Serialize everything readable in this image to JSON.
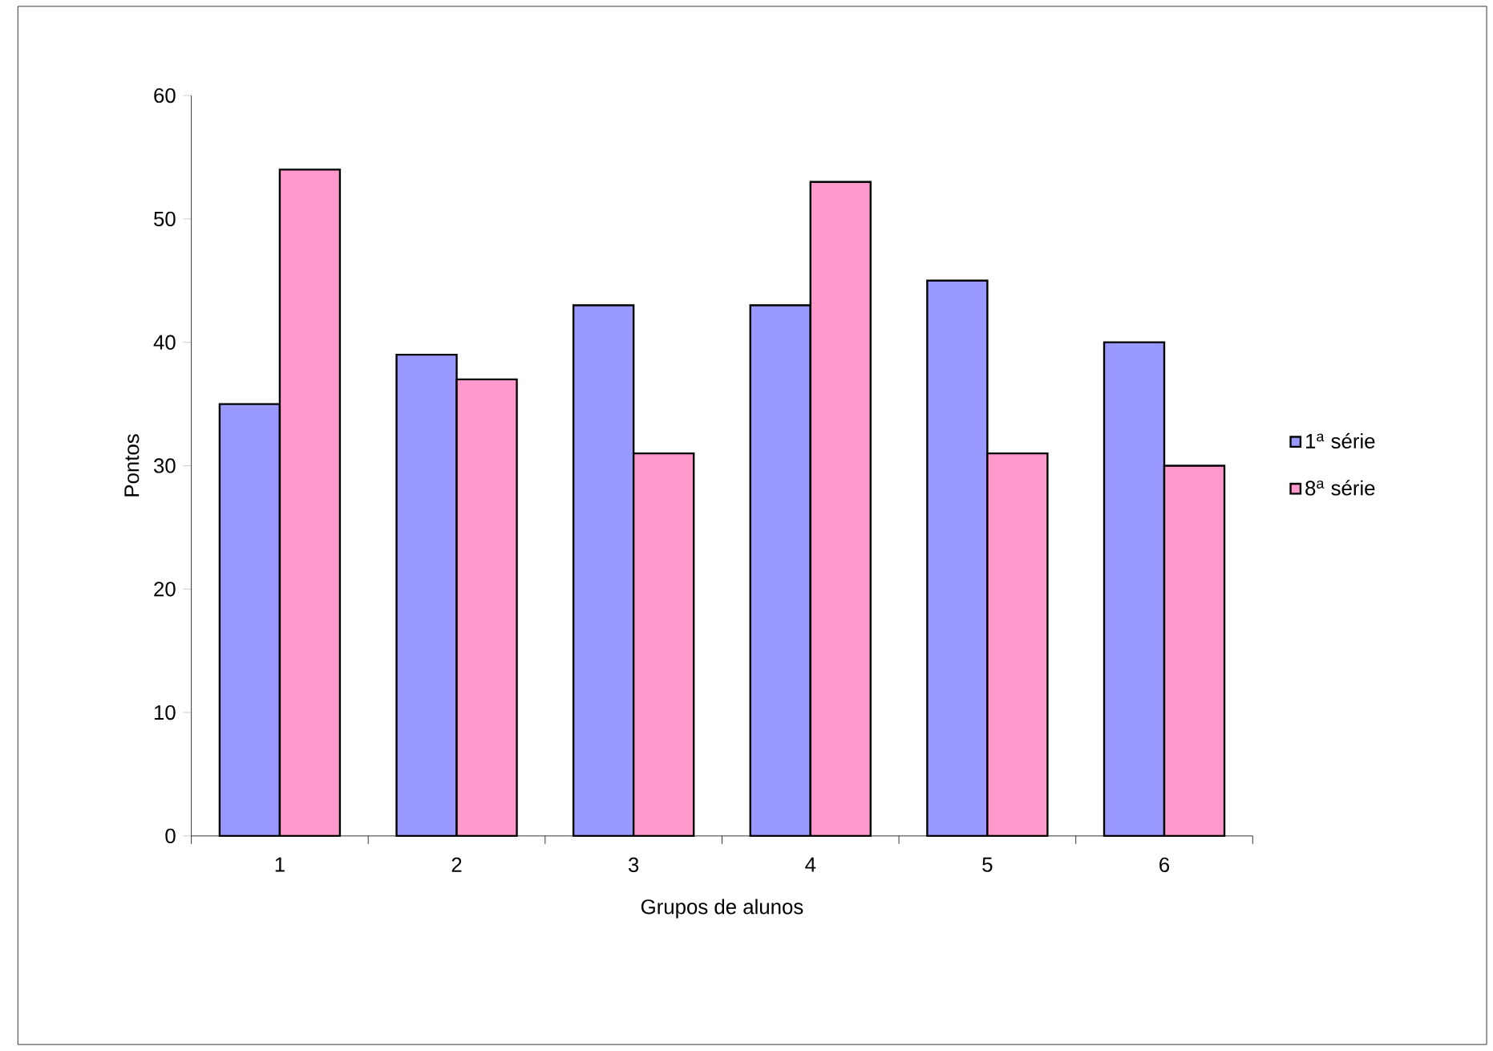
{
  "chart_data": {
    "type": "bar",
    "xlabel": "Grupos de alunos",
    "ylabel": "Pontos",
    "categories": [
      "1",
      "2",
      "3",
      "4",
      "5",
      "6"
    ],
    "series": [
      {
        "name": "1$^{a}$ série",
        "color": "#9999ff",
        "values": [
          35,
          39,
          43,
          43,
          45,
          40
        ]
      },
      {
        "name": "8$^{a}$ série",
        "color": "#ff99cc",
        "values": [
          54,
          37,
          31,
          53,
          31,
          30
        ]
      }
    ],
    "ylim": [
      0,
      60
    ],
    "yticks": [
      0,
      10,
      20,
      30,
      40,
      50,
      60
    ],
    "grid": false,
    "legend": "right"
  }
}
